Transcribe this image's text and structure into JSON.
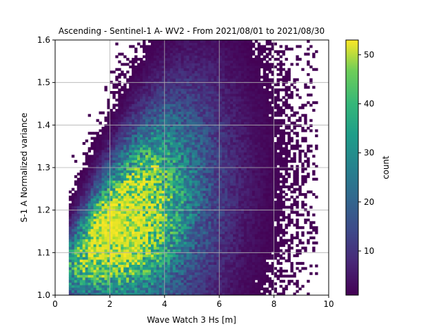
{
  "chart_data": {
    "type": "heatmap",
    "title": "Ascending - Sentinel-1 A- WV2 - From 2021/08/01 to 2021/08/30",
    "xlabel": "Wave Watch 3 Hs [m]",
    "ylabel": "S-1 A Normalized variance",
    "xlim": [
      0,
      10
    ],
    "ylim": [
      1.0,
      1.6
    ],
    "xticks": [
      "0",
      "2",
      "4",
      "6",
      "8",
      "10"
    ],
    "yticks": [
      "1.0",
      "1.1",
      "1.2",
      "1.3",
      "1.4",
      "1.5",
      "1.6"
    ],
    "grid": true,
    "colorbar": {
      "label": "count",
      "range": [
        1,
        53
      ],
      "ticks": [
        "10",
        "20",
        "30",
        "40",
        "50"
      ],
      "colormap": "viridis"
    },
    "bins": {
      "nx": 100,
      "ny": 100
    },
    "density_model": {
      "peak_count": 53,
      "peak_hs_m": 1.95,
      "peak_variance": 1.17,
      "trend": "count ridge rising from (Hs 1.5 m, 1.12) to (Hs 5 m, 1.33)"
    }
  }
}
